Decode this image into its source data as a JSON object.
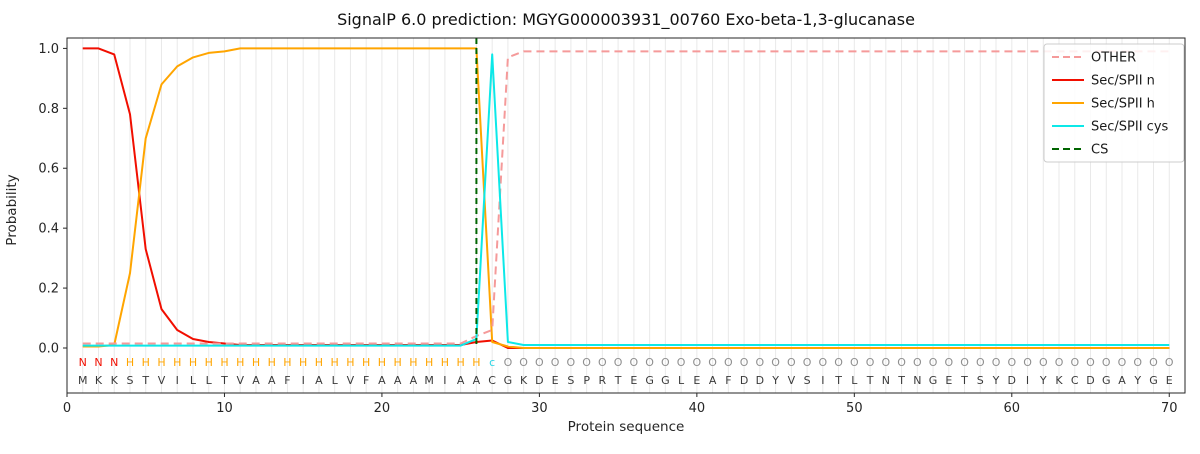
{
  "chart_data": {
    "type": "line",
    "title": "SignalP 6.0 prediction: MGYG000003931_00760 Exo-beta-1,3-glucanase",
    "xlabel": "Protein sequence",
    "ylabel": "Probability",
    "xlim": [
      0,
      71
    ],
    "ylim": [
      -0.15,
      1.035
    ],
    "x_ticks": [
      0,
      10,
      20,
      30,
      40,
      50,
      60,
      70
    ],
    "y_ticks": [
      0.0,
      0.2,
      0.4,
      0.6,
      0.8,
      1.0
    ],
    "grid": {
      "vertical_per_residue": true,
      "horizontal": false,
      "color": "#e9e9e9"
    },
    "n_residues": 70,
    "sequence": "MKKSTVILLTVAAFIALVFAAAMIAACGKDESPRTEGGLEAFDDYVSITLTNTNGETSYDIYKCDGAYGE",
    "annotation": "NNNHHHHHHHHHHHHHHHHHHHHHHHcOOOOOOOOOOOOOOOOOOOOOOOOOOOOOOOOOOOOOOOOOOO",
    "annotation_colors": {
      "N": "#f10e00",
      "H": "#ffa500",
      "c": "#2ad5e5",
      "O": "#8f8f8f"
    },
    "sequence_color": "#3a3a3a",
    "axis_color": "#262626",
    "legend": {
      "position": "upper right",
      "entries": [
        "OTHER",
        "Sec/SPII n",
        "Sec/SPII h",
        "Sec/SPII cys",
        "CS"
      ]
    },
    "series": [
      {
        "name": "OTHER",
        "color": "#f59a9a",
        "style": "dashed",
        "values": [
          0.015,
          0.015,
          0.015,
          0.015,
          0.015,
          0.015,
          0.015,
          0.015,
          0.015,
          0.015,
          0.015,
          0.015,
          0.015,
          0.015,
          0.015,
          0.015,
          0.015,
          0.015,
          0.015,
          0.015,
          0.015,
          0.015,
          0.015,
          0.015,
          0.015,
          0.04,
          0.06,
          0.97,
          0.99,
          0.99,
          0.99,
          0.99,
          0.99,
          0.99,
          0.99,
          0.99,
          0.99,
          0.99,
          0.99,
          0.99,
          0.99,
          0.99,
          0.99,
          0.99,
          0.99,
          0.99,
          0.99,
          0.99,
          0.99,
          0.99,
          0.99,
          0.99,
          0.99,
          0.99,
          0.99,
          0.99,
          0.99,
          0.99,
          0.99,
          0.99,
          0.99,
          0.99,
          0.99,
          0.99,
          0.99,
          0.99,
          0.99,
          0.99,
          0.99,
          0.99
        ]
      },
      {
        "name": "Sec/SPII n",
        "color": "#f10e00",
        "style": "solid",
        "values": [
          1.0,
          1.0,
          0.98,
          0.78,
          0.33,
          0.13,
          0.06,
          0.03,
          0.02,
          0.015,
          0.01,
          0.01,
          0.01,
          0.01,
          0.01,
          0.01,
          0.01,
          0.01,
          0.01,
          0.01,
          0.01,
          0.01,
          0.01,
          0.01,
          0.01,
          0.02,
          0.025,
          0,
          0,
          0,
          0,
          0,
          0,
          0,
          0,
          0,
          0,
          0,
          0,
          0,
          0,
          0,
          0,
          0,
          0,
          0,
          0,
          0,
          0,
          0,
          0,
          0,
          0,
          0,
          0,
          0,
          0,
          0,
          0,
          0,
          0,
          0,
          0,
          0,
          0,
          0,
          0,
          0,
          0,
          0
        ]
      },
      {
        "name": "Sec/SPII h",
        "color": "#ffa500",
        "style": "solid",
        "values": [
          0.005,
          0.005,
          0.01,
          0.25,
          0.7,
          0.88,
          0.94,
          0.97,
          0.985,
          0.99,
          1,
          1,
          1,
          1,
          1,
          1,
          1,
          1,
          1,
          1,
          1,
          1,
          1,
          1,
          1,
          1,
          0.02,
          0.005,
          0,
          0,
          0,
          0,
          0,
          0,
          0,
          0,
          0,
          0,
          0,
          0,
          0,
          0,
          0,
          0,
          0,
          0,
          0,
          0,
          0,
          0,
          0,
          0,
          0,
          0,
          0,
          0,
          0,
          0,
          0,
          0,
          0,
          0,
          0,
          0,
          0,
          0,
          0,
          0,
          0,
          0
        ]
      },
      {
        "name": "Sec/SPII cys",
        "color": "#0ce8e8",
        "style": "solid",
        "values": [
          0.008,
          0.008,
          0.008,
          0.008,
          0.008,
          0.008,
          0.008,
          0.008,
          0.008,
          0.008,
          0.008,
          0.008,
          0.008,
          0.008,
          0.008,
          0.008,
          0.008,
          0.008,
          0.008,
          0.008,
          0.008,
          0.008,
          0.008,
          0.008,
          0.008,
          0.03,
          0.98,
          0.02,
          0.01,
          0.01,
          0.01,
          0.01,
          0.01,
          0.01,
          0.01,
          0.01,
          0.01,
          0.01,
          0.01,
          0.01,
          0.01,
          0.01,
          0.01,
          0.01,
          0.01,
          0.01,
          0.01,
          0.01,
          0.01,
          0.01,
          0.01,
          0.01,
          0.01,
          0.01,
          0.01,
          0.01,
          0.01,
          0.01,
          0.01,
          0.01,
          0.01,
          0.01,
          0.01,
          0.01,
          0.01,
          0.01,
          0.01,
          0.01,
          0.01,
          0.01
        ]
      }
    ],
    "cs_marker": {
      "name": "CS",
      "color": "#006400",
      "style": "dashed",
      "x": 26
    }
  }
}
